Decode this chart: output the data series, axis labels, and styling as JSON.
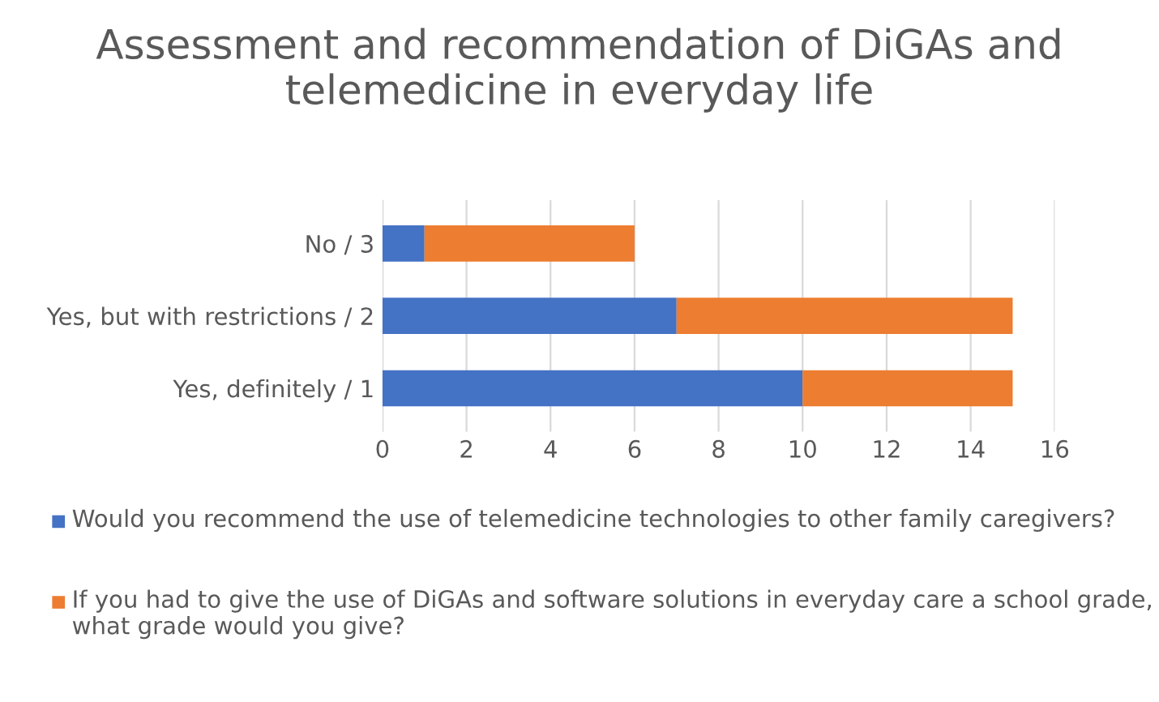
{
  "chart_data": {
    "type": "bar",
    "orientation": "horizontal",
    "stacked": true,
    "title": "Assessment and recommendation of DiGAs and telemedicine in everyday life",
    "categories": [
      "No / 3",
      "Yes, but with restrictions / 2",
      "Yes, definitely / 1"
    ],
    "series": [
      {
        "name": "Would you recommend the use of telemedicine technologies to other family caregivers?",
        "color": "#4472c4",
        "values": [
          1,
          7,
          10
        ]
      },
      {
        "name": "If you had to give the use of DiGAs and software solutions in everyday care a school grade, what grade would you give?",
        "color": "#ed7d31",
        "values": [
          5,
          8,
          5
        ]
      }
    ],
    "xlim": [
      0,
      16
    ],
    "xticks": [
      0,
      2,
      4,
      6,
      8,
      10,
      12,
      14,
      16
    ],
    "grid": "x",
    "legend": "bottom"
  }
}
